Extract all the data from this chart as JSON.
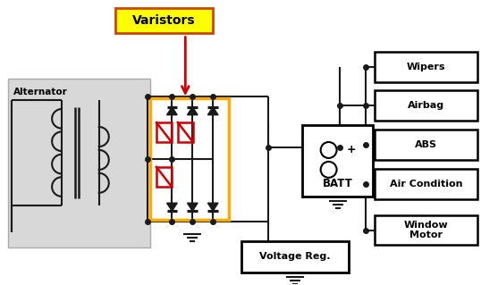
{
  "background_color": "#ffffff",
  "varistors_label": "Varistors",
  "varistors_box_color": "#ffff00",
  "varistors_box_edge": "#ffaa00",
  "varistor_color": "#cc0000",
  "arrow_color": "#cc0000",
  "alternator_label": "Alternator",
  "batt_label": "BATT",
  "voltage_reg_label": "Voltage Reg.",
  "load_labels": [
    "Wipers",
    "Airbag",
    "ABS",
    "Air Condition",
    "Window\nMotor"
  ],
  "gray_box_color": "#d8d8d8",
  "line_color": "#1a1a1a",
  "line_width": 1.5,
  "text_color": "#000000"
}
